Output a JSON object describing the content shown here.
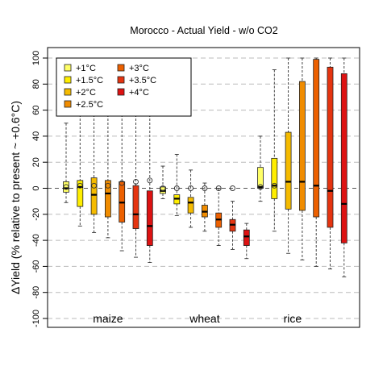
{
  "chart_data": {
    "type": "box",
    "title": "Morocco - Actual Yield - w/o CO2",
    "ylabel": "ΔYield (% relative to present ~ +0.6°C)",
    "xlabel": "",
    "ylim": [
      -106,
      106
    ],
    "yticks": [
      -100,
      -80,
      -60,
      -40,
      -20,
      0,
      20,
      40,
      60,
      80,
      100
    ],
    "grid": true,
    "legend_position": "top-left",
    "legend": [
      {
        "label": "+1°C",
        "color": "#ffff66"
      },
      {
        "label": "+1.5°C",
        "color": "#ffee00"
      },
      {
        "label": "+2°C",
        "color": "#f5bb00"
      },
      {
        "label": "+2.5°C",
        "color": "#f08c00"
      },
      {
        "label": "+3°C",
        "color": "#ec6000"
      },
      {
        "label": "+3.5°C",
        "color": "#e53410"
      },
      {
        "label": "+4°C",
        "color": "#dd1212"
      }
    ],
    "groups": [
      {
        "name": "maize",
        "boxes": [
          {
            "level": "+1°C",
            "whisker_low": -11,
            "q1": -3,
            "median": 0,
            "q3": 5,
            "whisker_high": 50,
            "mean": 1
          },
          {
            "level": "+1.5°C",
            "whisker_low": -29,
            "q1": -14,
            "median": 1,
            "q3": 6,
            "whisker_high": 100,
            "mean": 2
          },
          {
            "level": "+2°C",
            "whisker_low": -34,
            "q1": -20,
            "median": -5,
            "q3": 8,
            "whisker_high": 100,
            "mean": 2
          },
          {
            "level": "+2.5°C",
            "whisker_low": -38,
            "q1": -22,
            "median": -4,
            "q3": 6,
            "whisker_high": 100,
            "mean": 2
          },
          {
            "level": "+3°C",
            "whisker_low": -48,
            "q1": -26,
            "median": -11,
            "q3": 5,
            "whisker_high": 100,
            "mean": 4
          },
          {
            "level": "+3.5°C",
            "whisker_low": -53,
            "q1": -31,
            "median": -20,
            "q3": 2,
            "whisker_high": 100,
            "mean": 5
          },
          {
            "level": "+4°C",
            "whisker_low": -57,
            "q1": -44,
            "median": -29,
            "q3": -2,
            "whisker_high": 100,
            "mean": 6
          }
        ]
      },
      {
        "name": "wheat",
        "boxes": [
          {
            "level": "+1°C",
            "whisker_low": -8,
            "q1": -4,
            "median": -2,
            "q3": 1,
            "whisker_high": 17,
            "mean": 0
          },
          {
            "level": "+1.5°C",
            "whisker_low": -21,
            "q1": -12,
            "median": -8,
            "q3": -5,
            "whisker_high": 26,
            "mean": 0
          },
          {
            "level": "+2°C",
            "whisker_low": -30,
            "q1": -19,
            "median": -11,
            "q3": -7,
            "whisker_high": 14,
            "mean": 0
          },
          {
            "level": "+2.5°C",
            "whisker_low": -33,
            "q1": -22,
            "median": -18,
            "q3": -13,
            "whisker_high": 4,
            "mean": 0
          },
          {
            "level": "+3°C",
            "whisker_low": -44,
            "q1": -30,
            "median": -24,
            "q3": -19,
            "whisker_high": 0,
            "mean": 0
          },
          {
            "level": "+3.5°C",
            "whisker_low": -47,
            "q1": -33,
            "median": -28,
            "q3": -24,
            "whisker_high": -10,
            "mean": 0
          },
          {
            "level": "+4°C",
            "whisker_low": -54,
            "q1": -44,
            "median": -37,
            "q3": -32,
            "whisker_high": -27,
            "mean": null
          }
        ]
      },
      {
        "name": "rice",
        "boxes": [
          {
            "level": "+1°C",
            "whisker_low": -10,
            "q1": 0,
            "median": 1,
            "q3": 16,
            "whisker_high": 40,
            "mean": 1
          },
          {
            "level": "+1.5°C",
            "whisker_low": -33,
            "q1": -8,
            "median": 2,
            "q3": 23,
            "whisker_high": 91,
            "mean": 2
          },
          {
            "level": "+2°C",
            "whisker_low": -50,
            "q1": -16,
            "median": 5,
            "q3": 43,
            "whisker_high": 100,
            "mean": null
          },
          {
            "level": "+2.5°C",
            "whisker_low": -55,
            "q1": -17,
            "median": 5,
            "q3": 82,
            "whisker_high": 100,
            "mean": null
          },
          {
            "level": "+3°C",
            "whisker_low": -60,
            "q1": -22,
            "median": 2,
            "q3": 99,
            "whisker_high": 100,
            "mean": null
          },
          {
            "level": "+3.5°C",
            "whisker_low": -62,
            "q1": -30,
            "median": -2,
            "q3": 93,
            "whisker_high": 100,
            "mean": null
          },
          {
            "level": "+4°C",
            "whisker_low": -68,
            "q1": -42,
            "median": -12,
            "q3": 88,
            "whisker_high": 100,
            "mean": null
          }
        ]
      }
    ]
  }
}
